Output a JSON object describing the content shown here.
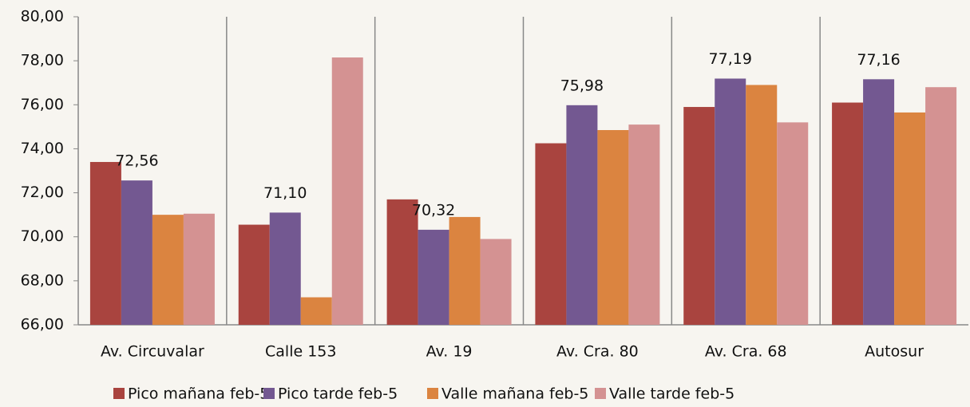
{
  "chart_data": {
    "type": "bar",
    "categories": [
      "Av. Circuvalar",
      "Calle 153",
      "Av. 19",
      "Av. Cra. 80",
      "Av. Cra. 68",
      "Autosur"
    ],
    "series": [
      {
        "name": "Pico mañana feb-5",
        "color": "#a9443f",
        "values": [
          73.4,
          70.55,
          71.7,
          74.25,
          75.9,
          76.1
        ]
      },
      {
        "name": "Pico tarde feb-5",
        "color": "#735891",
        "values": [
          72.56,
          71.1,
          70.32,
          75.98,
          77.19,
          77.16
        ],
        "value_labels": [
          "72,56",
          "71,10",
          "70,32",
          "75,98",
          "77,19",
          "77,16"
        ]
      },
      {
        "name": "Valle mañana feb-5",
        "color": "#db8440",
        "values": [
          71.0,
          67.25,
          70.9,
          74.85,
          76.9,
          75.65
        ]
      },
      {
        "name": "Valle tarde feb-5",
        "color": "#d49292",
        "values": [
          71.05,
          78.15,
          69.9,
          75.1,
          75.2,
          76.8
        ]
      }
    ],
    "ylim": [
      66,
      80
    ],
    "yticks": [
      {
        "value": 66,
        "label": "66,00"
      },
      {
        "value": 68,
        "label": "68,00"
      },
      {
        "value": 70,
        "label": "70,00"
      },
      {
        "value": 72,
        "label": "72,00"
      },
      {
        "value": 74,
        "label": "74,00"
      },
      {
        "value": 76,
        "label": "76,00"
      },
      {
        "value": 78,
        "label": "78,00"
      },
      {
        "value": 80,
        "label": "80,00"
      }
    ],
    "legend": "bottom"
  }
}
